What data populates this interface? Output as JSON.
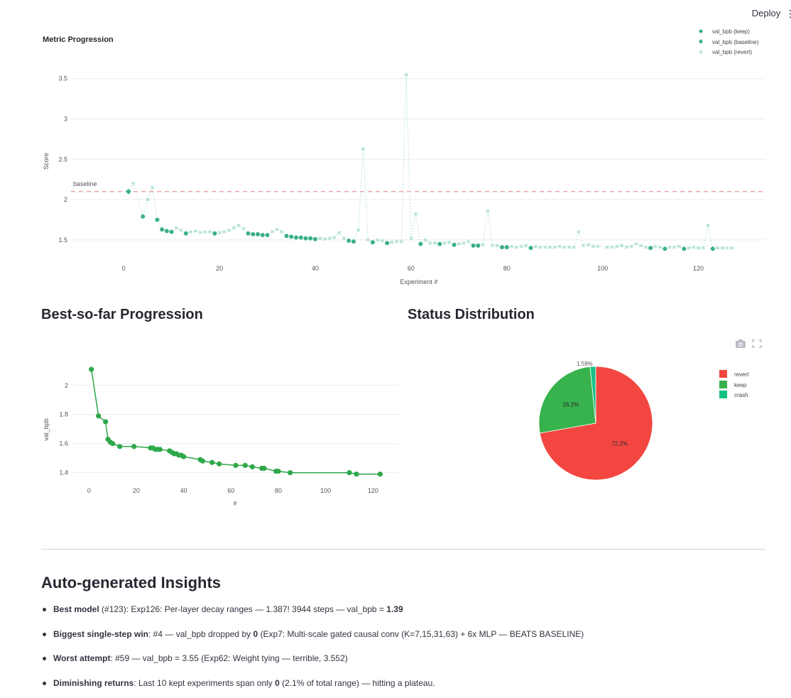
{
  "header": {
    "deploy_label": "Deploy",
    "menu_glyph": "⋮"
  },
  "metric_chart": {
    "title": "Metric Progression",
    "xlabel": "Experiment #",
    "ylabel": "Score",
    "baseline_label": "baseline",
    "legend": [
      "val_bpb (keep)",
      "val_bpb (baseline)",
      "val_bpb (revert)"
    ]
  },
  "best_section": {
    "title": "Best-so-far Progression"
  },
  "status_section": {
    "title": "Status Distribution"
  },
  "insights": {
    "title": "Auto-generated Insights",
    "items": [
      {
        "lead": "Best model",
        "mid": " (#123): Exp126: Per-layer decay ranges — 1.387! 3944 steps — val_bpb = ",
        "strong2": "1.39",
        "tail": ""
      },
      {
        "lead": "Biggest single-step win",
        "mid": ": #4 — val_bpb dropped by ",
        "strong2": "0",
        "tail": " (Exp7: Multi-scale gated causal conv (K=7,15,31,63) + 6x MLP — BEATS BASELINE)"
      },
      {
        "lead": "Worst attempt",
        "mid": ": #59 — val_bpb = 3.55 (Exp62: Weight tying — terrible, 3.552)",
        "strong2": "",
        "tail": ""
      },
      {
        "lead": "Diminishing returns",
        "mid": ": Last 10 kept experiments span only ",
        "strong2": "0",
        "tail": " (2.1% of total range) — hitting a plateau."
      }
    ]
  },
  "colors": {
    "keep": "#3aaf8b",
    "baseline": "#3aaf8b",
    "revert": "#a9e0c9",
    "baseline_line": "#f4a3a3",
    "best_line": "#2ea84a",
    "pie_revert": "#f44640",
    "pie_keep": "#37b24d",
    "pie_crash": "#16c184"
  },
  "chart_data": [
    {
      "type": "scatter",
      "title": "Metric Progression",
      "xlabel": "Experiment #",
      "ylabel": "Score",
      "xlim": [
        -11,
        134
      ],
      "ylim": [
        1.27,
        3.7
      ],
      "xticks": [
        0,
        20,
        40,
        60,
        80,
        100,
        120
      ],
      "yticks": [
        1.5,
        2,
        2.5,
        3,
        3.5
      ],
      "baseline_value": 2.1,
      "series": [
        {
          "name": "val_bpb (keep)",
          "marker": "circle",
          "x": [
            4,
            7,
            8,
            9,
            10,
            13,
            19,
            26,
            27,
            28,
            29,
            30,
            34,
            35,
            36,
            37,
            38,
            39,
            40,
            47,
            48,
            52,
            55,
            62,
            66,
            69,
            73,
            74,
            79,
            80,
            85,
            110,
            113,
            117,
            123
          ],
          "values": [
            1.79,
            1.75,
            1.63,
            1.61,
            1.6,
            1.58,
            1.58,
            1.58,
            1.57,
            1.57,
            1.56,
            1.56,
            1.55,
            1.54,
            1.53,
            1.53,
            1.52,
            1.52,
            1.51,
            1.49,
            1.48,
            1.47,
            1.46,
            1.45,
            1.45,
            1.44,
            1.43,
            1.43,
            1.41,
            1.41,
            1.4,
            1.4,
            1.39,
            1.39,
            1.39
          ]
        },
        {
          "name": "val_bpb (baseline)",
          "marker": "diamond",
          "x": [
            1
          ],
          "values": [
            2.1
          ]
        },
        {
          "name": "val_bpb (revert)",
          "marker": "x",
          "x": [
            2,
            5,
            6,
            11,
            12,
            14,
            15,
            16,
            17,
            18,
            20,
            21,
            22,
            23,
            24,
            25,
            31,
            32,
            33,
            41,
            42,
            43,
            44,
            45,
            46,
            49,
            50,
            51,
            53,
            54,
            56,
            57,
            58,
            59,
            60,
            61,
            63,
            64,
            65,
            67,
            68,
            70,
            71,
            72,
            75,
            76,
            77,
            78,
            81,
            82,
            83,
            84,
            86,
            87,
            88,
            89,
            90,
            91,
            92,
            93,
            94,
            95,
            96,
            97,
            98,
            99,
            101,
            102,
            103,
            104,
            105,
            106,
            107,
            108,
            109,
            111,
            112,
            114,
            115,
            116,
            118,
            119,
            120,
            121,
            122,
            124,
            125,
            126,
            127
          ],
          "values": [
            2.2,
            2.0,
            2.15,
            1.65,
            1.62,
            1.6,
            1.61,
            1.59,
            1.6,
            1.6,
            1.59,
            1.6,
            1.62,
            1.65,
            1.68,
            1.64,
            1.6,
            1.63,
            1.6,
            1.52,
            1.51,
            1.52,
            1.53,
            1.59,
            1.52,
            1.62,
            2.63,
            1.5,
            1.5,
            1.49,
            1.47,
            1.48,
            1.48,
            3.55,
            1.52,
            1.82,
            1.5,
            1.46,
            1.46,
            1.46,
            1.47,
            1.45,
            1.46,
            1.48,
            1.44,
            1.86,
            1.43,
            1.43,
            1.42,
            1.41,
            1.42,
            1.43,
            1.42,
            1.41,
            1.41,
            1.41,
            1.41,
            1.42,
            1.41,
            1.41,
            1.41,
            1.6,
            1.43,
            1.44,
            1.42,
            1.42,
            1.41,
            1.41,
            1.42,
            1.43,
            1.41,
            1.42,
            1.45,
            1.43,
            1.41,
            1.42,
            1.41,
            1.41,
            1.41,
            1.42,
            1.4,
            1.41,
            1.4,
            1.4,
            1.68,
            1.4,
            1.4,
            1.4,
            1.4
          ]
        }
      ]
    },
    {
      "type": "line",
      "title": "Best-so-far Progression",
      "xlabel": "#",
      "ylabel": "val_bpb",
      "xlim": [
        -7,
        131
      ],
      "ylim": [
        1.33,
        2.16
      ],
      "xticks": [
        0,
        20,
        40,
        60,
        80,
        100,
        120
      ],
      "yticks": [
        1.4,
        1.6,
        1.8,
        2
      ],
      "series": [
        {
          "name": "best-so-far",
          "x": [
            1,
            4,
            7,
            8,
            9,
            10,
            13,
            19,
            26,
            27,
            28,
            29,
            30,
            34,
            35,
            36,
            37,
            38,
            39,
            40,
            47,
            48,
            52,
            55,
            62,
            66,
            69,
            73,
            74,
            79,
            80,
            85,
            110,
            113,
            123
          ],
          "values": [
            2.11,
            1.79,
            1.75,
            1.63,
            1.61,
            1.6,
            1.58,
            1.58,
            1.57,
            1.57,
            1.56,
            1.56,
            1.56,
            1.55,
            1.54,
            1.53,
            1.53,
            1.52,
            1.52,
            1.51,
            1.49,
            1.48,
            1.47,
            1.46,
            1.45,
            1.45,
            1.44,
            1.43,
            1.43,
            1.41,
            1.41,
            1.4,
            1.4,
            1.39,
            1.39
          ]
        }
      ]
    },
    {
      "type": "pie",
      "title": "Status Distribution",
      "categories": [
        "revert",
        "keep",
        "crash"
      ],
      "values": [
        72.2,
        26.2,
        1.59
      ],
      "labels": [
        "72.2%",
        "26.2%",
        "1.59%"
      ],
      "legend": [
        "revert",
        "keep",
        "crash"
      ]
    }
  ]
}
